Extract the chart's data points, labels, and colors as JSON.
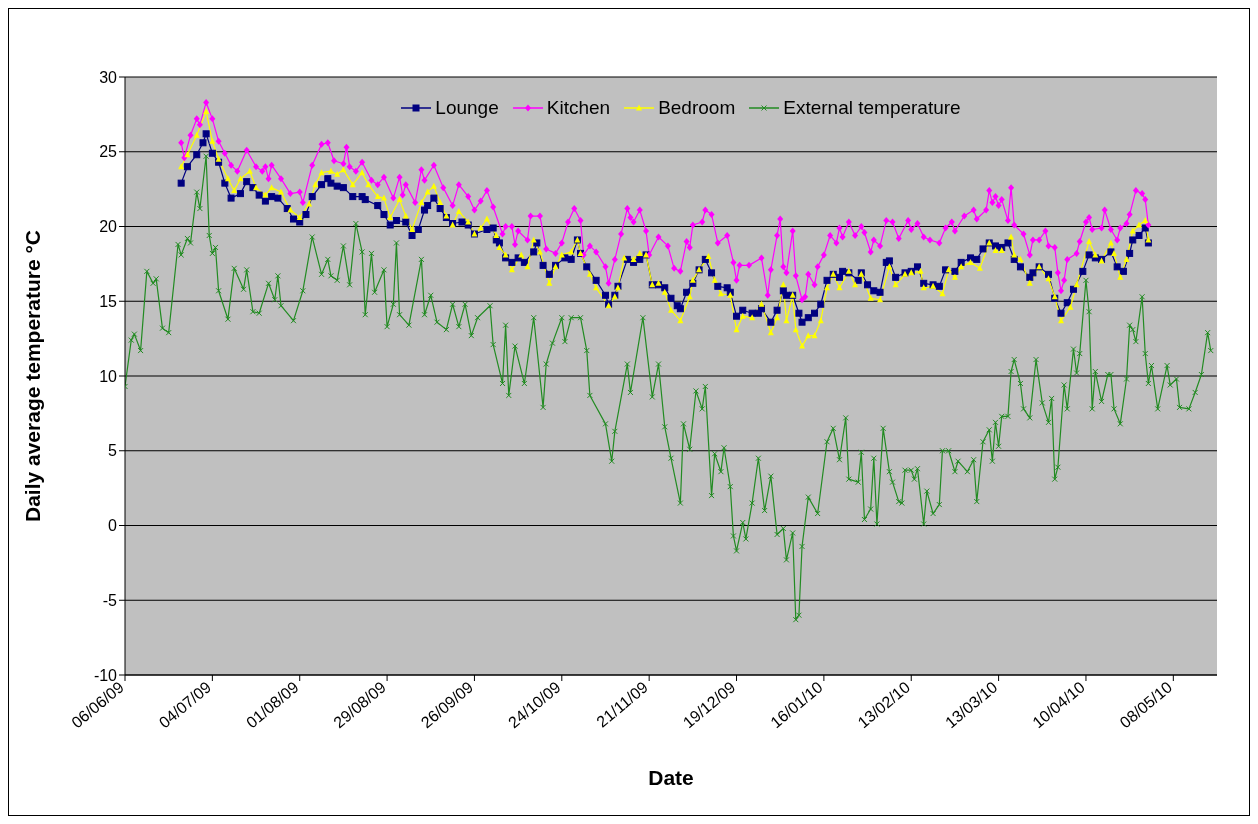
{
  "chart_data": {
    "type": "line",
    "xlabel": "Date",
    "ylabel": "Daily average temperature °C",
    "xlim": [
      "2009-06-06",
      "2010-05-22"
    ],
    "xticks": [
      {
        "value": "2009-06-06",
        "label": "06/06/09"
      },
      {
        "value": "2009-07-04",
        "label": "04/07/09"
      },
      {
        "value": "2009-08-01",
        "label": "01/08/09"
      },
      {
        "value": "2009-08-29",
        "label": "29/08/09"
      },
      {
        "value": "2009-09-26",
        "label": "26/09/09"
      },
      {
        "value": "2009-10-24",
        "label": "24/10/09"
      },
      {
        "value": "2009-11-21",
        "label": "21/11/09"
      },
      {
        "value": "2009-12-19",
        "label": "19/12/09"
      },
      {
        "value": "2010-01-16",
        "label": "16/01/10"
      },
      {
        "value": "2010-02-13",
        "label": "13/02/10"
      },
      {
        "value": "2010-03-13",
        "label": "13/03/10"
      },
      {
        "value": "2010-04-10",
        "label": "10/04/10"
      },
      {
        "value": "2010-05-08",
        "label": "08/05/10"
      }
    ],
    "ylim": [
      -10,
      30
    ],
    "yticks": [
      -10,
      -5,
      0,
      5,
      10,
      15,
      20,
      25,
      30
    ],
    "grid": "y",
    "legend": "top",
    "line_style": "solid",
    "series": [
      {
        "name": "Lounge",
        "color": "#000080",
        "marker": "square",
        "x": [
          "2009-06-24",
          "2009-06-26",
          "2009-06-29",
          "2009-07-01",
          "2009-07-02",
          "2009-07-04",
          "2009-07-06",
          "2009-07-08",
          "2009-07-10",
          "2009-07-13",
          "2009-07-15",
          "2009-07-17",
          "2009-07-19",
          "2009-07-21",
          "2009-07-23",
          "2009-07-25",
          "2009-07-28",
          "2009-07-30",
          "2009-08-01",
          "2009-08-03",
          "2009-08-05",
          "2009-08-08",
          "2009-08-10",
          "2009-08-11",
          "2009-08-13",
          "2009-08-15",
          "2009-08-18",
          "2009-08-21",
          "2009-08-22",
          "2009-08-26",
          "2009-08-28",
          "2009-08-30",
          "2009-09-01",
          "2009-09-04",
          "2009-09-06",
          "2009-09-08",
          "2009-09-10",
          "2009-09-11",
          "2009-09-13",
          "2009-09-15",
          "2009-09-17",
          "2009-09-19",
          "2009-09-22",
          "2009-09-24",
          "2009-09-26",
          "2009-09-30",
          "2009-10-02",
          "2009-10-03",
          "2009-10-04",
          "2009-10-06",
          "2009-10-08",
          "2009-10-10",
          "2009-10-12",
          "2009-10-15",
          "2009-10-16",
          "2009-10-18",
          "2009-10-20",
          "2009-10-22",
          "2009-10-25",
          "2009-10-27",
          "2009-10-29",
          "2009-10-30",
          "2009-11-01",
          "2009-11-04",
          "2009-11-07",
          "2009-11-08",
          "2009-11-10",
          "2009-11-11",
          "2009-11-14",
          "2009-11-16",
          "2009-11-18",
          "2009-11-20",
          "2009-11-22",
          "2009-11-24",
          "2009-11-26",
          "2009-11-28",
          "2009-11-30",
          "2009-12-01",
          "2009-12-03",
          "2009-12-05",
          "2009-12-07",
          "2009-12-09",
          "2009-12-11",
          "2009-12-13",
          "2009-12-16",
          "2009-12-17",
          "2009-12-19",
          "2009-12-21",
          "2009-12-24",
          "2009-12-26",
          "2009-12-27",
          "2009-12-30",
          "2010-01-01",
          "2010-01-03",
          "2010-01-04",
          "2010-01-06",
          "2010-01-08",
          "2010-01-09",
          "2010-01-11",
          "2010-01-13",
          "2010-01-15",
          "2010-01-17",
          "2010-01-19",
          "2010-01-21",
          "2010-01-22",
          "2010-01-24",
          "2010-01-27",
          "2010-01-28",
          "2010-01-30",
          "2010-02-01",
          "2010-02-03",
          "2010-02-05",
          "2010-02-06",
          "2010-02-08",
          "2010-02-11",
          "2010-02-13",
          "2010-02-15",
          "2010-02-17",
          "2010-02-20",
          "2010-02-22",
          "2010-02-24",
          "2010-02-27",
          "2010-03-01",
          "2010-03-04",
          "2010-03-06",
          "2010-03-08",
          "2010-03-10",
          "2010-03-12",
          "2010-03-14",
          "2010-03-16",
          "2010-03-18",
          "2010-03-20",
          "2010-03-23",
          "2010-03-24",
          "2010-03-26",
          "2010-03-29",
          "2010-03-31",
          "2010-04-02",
          "2010-04-04",
          "2010-04-06",
          "2010-04-09",
          "2010-04-11",
          "2010-04-13",
          "2010-04-15",
          "2010-04-18",
          "2010-04-20",
          "2010-04-22",
          "2010-04-24",
          "2010-04-25",
          "2010-04-27",
          "2010-04-29",
          "2010-04-30"
        ],
        "values": [
          22.9,
          24.0,
          24.8,
          25.6,
          26.2,
          24.9,
          24.3,
          22.9,
          21.9,
          22.2,
          23.0,
          22.6,
          22.1,
          21.7,
          22.0,
          21.9,
          21.2,
          20.5,
          20.3,
          20.8,
          22.0,
          22.8,
          23.2,
          22.9,
          22.7,
          22.6,
          22.0,
          22.0,
          21.8,
          21.4,
          20.8,
          20.1,
          20.4,
          20.3,
          19.4,
          19.8,
          21.1,
          21.4,
          21.9,
          21.2,
          20.6,
          20.2,
          20.3,
          20.1,
          19.5,
          19.8,
          19.9,
          19.1,
          18.9,
          17.9,
          17.6,
          17.9,
          17.6,
          18.3,
          18.9,
          17.4,
          16.8,
          17.4,
          17.9,
          17.8,
          19.1,
          18.2,
          17.3,
          16.4,
          15.4,
          14.8,
          15.4,
          16.0,
          17.8,
          17.6,
          17.8,
          18.1,
          16.1,
          16.1,
          15.9,
          15.2,
          14.7,
          14.5,
          15.6,
          16.2,
          17.1,
          17.8,
          16.9,
          16.0,
          15.9,
          15.6,
          14.0,
          14.4,
          14.2,
          14.2,
          14.5,
          13.6,
          14.4,
          15.7,
          15.4,
          15.4,
          14.2,
          13.6,
          13.9,
          14.2,
          14.8,
          16.4,
          16.8,
          16.6,
          17.0,
          16.9,
          16.4,
          16.9,
          16.1,
          15.7,
          15.6,
          17.6,
          17.7,
          16.6,
          16.9,
          17.0,
          17.3,
          16.2,
          16.1,
          16.0,
          17.1,
          17.0,
          17.6,
          17.9,
          17.8,
          18.5,
          18.9,
          18.7,
          18.6,
          18.9,
          17.8,
          17.3,
          16.6,
          16.9,
          17.3,
          16.8,
          15.2,
          14.2,
          14.9,
          15.8,
          17.0,
          18.1,
          17.9,
          17.8,
          18.3,
          17.3,
          17.0,
          18.2,
          19.1,
          19.4,
          19.9,
          18.9
        ]
      },
      {
        "name": "Kitchen",
        "color": "#ff00ff",
        "marker": "diamond",
        "x": [
          "2009-06-24",
          "2009-06-25",
          "2009-06-27",
          "2009-06-29",
          "2009-06-30",
          "2009-07-02",
          "2009-07-04",
          "2009-07-06",
          "2009-07-08",
          "2009-07-10",
          "2009-07-12",
          "2009-07-15",
          "2009-07-18",
          "2009-07-20",
          "2009-07-21",
          "2009-07-22",
          "2009-07-23",
          "2009-07-26",
          "2009-07-29",
          "2009-08-01",
          "2009-08-02",
          "2009-08-05",
          "2009-08-08",
          "2009-08-10",
          "2009-08-12",
          "2009-08-15",
          "2009-08-16",
          "2009-08-17",
          "2009-08-19",
          "2009-08-21",
          "2009-08-24",
          "2009-08-26",
          "2009-08-28",
          "2009-08-31",
          "2009-09-02",
          "2009-09-03",
          "2009-09-04",
          "2009-09-07",
          "2009-09-09",
          "2009-09-10",
          "2009-09-13",
          "2009-09-16",
          "2009-09-19",
          "2009-09-21",
          "2009-09-24",
          "2009-09-26",
          "2009-09-28",
          "2009-09-30",
          "2009-10-02",
          "2009-10-05",
          "2009-10-06",
          "2009-10-08",
          "2009-10-09",
          "2009-10-10",
          "2009-10-13",
          "2009-10-14",
          "2009-10-17",
          "2009-10-19",
          "2009-10-22",
          "2009-10-24",
          "2009-10-26",
          "2009-10-28",
          "2009-10-30",
          "2009-10-31",
          "2009-11-02",
          "2009-11-04",
          "2009-11-07",
          "2009-11-08",
          "2009-11-10",
          "2009-11-12",
          "2009-11-14",
          "2009-11-15",
          "2009-11-16",
          "2009-11-18",
          "2009-11-20",
          "2009-11-21",
          "2009-11-24",
          "2009-11-27",
          "2009-11-29",
          "2009-12-01",
          "2009-12-03",
          "2009-12-04",
          "2009-12-05",
          "2009-12-08",
          "2009-12-09",
          "2009-12-11",
          "2009-12-13",
          "2009-12-16",
          "2009-12-18",
          "2009-12-19",
          "2009-12-20",
          "2009-12-23",
          "2009-12-27",
          "2009-12-29",
          "2009-12-30",
          "2010-01-01",
          "2010-01-02",
          "2010-01-03",
          "2010-01-04",
          "2010-01-06",
          "2010-01-07",
          "2010-01-09",
          "2010-01-10",
          "2010-01-11",
          "2010-01-13",
          "2010-01-14",
          "2010-01-16",
          "2010-01-18",
          "2010-01-20",
          "2010-01-21",
          "2010-01-22",
          "2010-01-24",
          "2010-01-26",
          "2010-01-28",
          "2010-01-29",
          "2010-01-31",
          "2010-02-01",
          "2010-02-03",
          "2010-02-05",
          "2010-02-07",
          "2010-02-09",
          "2010-02-12",
          "2010-02-13",
          "2010-02-15",
          "2010-02-17",
          "2010-02-19",
          "2010-02-22",
          "2010-02-24",
          "2010-02-26",
          "2010-02-27",
          "2010-03-02",
          "2010-03-05",
          "2010-03-06",
          "2010-03-09",
          "2010-03-10",
          "2010-03-11",
          "2010-03-12",
          "2010-03-13",
          "2010-03-14",
          "2010-03-16",
          "2010-03-17",
          "2010-03-18",
          "2010-03-21",
          "2010-03-23",
          "2010-03-24",
          "2010-03-26",
          "2010-03-28",
          "2010-03-29",
          "2010-03-31",
          "2010-04-01",
          "2010-04-02",
          "2010-04-03",
          "2010-04-04",
          "2010-04-07",
          "2010-04-08",
          "2010-04-10",
          "2010-04-11",
          "2010-04-12",
          "2010-04-15",
          "2010-04-16",
          "2010-04-18",
          "2010-04-20",
          "2010-04-21",
          "2010-04-23",
          "2010-04-24",
          "2010-04-26",
          "2010-04-28",
          "2010-04-29",
          "2010-04-30"
        ],
        "values": [
          25.6,
          24.6,
          26.1,
          27.2,
          26.8,
          28.3,
          27.2,
          25.7,
          24.9,
          24.1,
          23.7,
          25.1,
          24.0,
          23.7,
          24.0,
          23.2,
          24.1,
          23.2,
          22.2,
          22.3,
          21.6,
          24.1,
          25.5,
          25.6,
          24.4,
          24.2,
          25.3,
          24.0,
          23.7,
          24.3,
          23.1,
          22.8,
          23.3,
          21.9,
          23.3,
          22.1,
          22.8,
          21.6,
          23.8,
          23.1,
          24.1,
          22.6,
          21.4,
          22.8,
          22.0,
          21.1,
          21.7,
          22.4,
          21.3,
          19.5,
          20.0,
          20.0,
          18.8,
          19.7,
          19.1,
          20.7,
          20.7,
          18.5,
          18.2,
          18.9,
          20.3,
          21.2,
          20.4,
          18.1,
          18.7,
          18.3,
          17.3,
          16.2,
          17.8,
          19.5,
          21.2,
          20.6,
          20.3,
          21.1,
          19.7,
          18.1,
          19.3,
          18.7,
          17.2,
          17.0,
          19.0,
          18.6,
          20.1,
          20.3,
          21.1,
          20.8,
          18.9,
          19.4,
          17.6,
          16.4,
          17.4,
          17.4,
          17.9,
          15.4,
          17.1,
          19.4,
          20.5,
          17.3,
          16.9,
          19.7,
          16.7,
          15.1,
          15.3,
          16.8,
          16.1,
          17.3,
          18.1,
          19.4,
          18.9,
          19.9,
          19.3,
          20.3,
          19.4,
          20.0,
          19.6,
          18.3,
          19.1,
          18.7,
          20.4,
          20.3,
          19.2,
          20.4,
          19.8,
          20.2,
          19.3,
          19.1,
          18.9,
          19.9,
          20.3,
          19.7,
          20.7,
          21.1,
          20.5,
          21.1,
          22.4,
          21.6,
          22.0,
          21.4,
          21.8,
          20.4,
          22.6,
          20.1,
          19.5,
          18.1,
          19.1,
          19.1,
          19.7,
          18.7,
          18.6,
          16.9,
          15.7,
          16.4,
          17.8,
          18.2,
          19.0,
          20.3,
          20.6,
          19.8,
          19.9,
          21.1,
          19.8,
          19.1,
          19.9,
          20.2,
          20.8,
          22.4,
          22.2,
          21.8,
          20.1
        ]
      },
      {
        "name": "Bedroom",
        "color": "#ffff00",
        "marker": "triangle",
        "x": [
          "2009-06-24",
          "2009-06-26",
          "2009-06-29",
          "2009-07-02",
          "2009-07-04",
          "2009-07-06",
          "2009-07-09",
          "2009-07-11",
          "2009-07-13",
          "2009-07-16",
          "2009-07-18",
          "2009-07-21",
          "2009-07-23",
          "2009-07-26",
          "2009-07-29",
          "2009-08-01",
          "2009-08-04",
          "2009-08-06",
          "2009-08-08",
          "2009-08-11",
          "2009-08-13",
          "2009-08-15",
          "2009-08-18",
          "2009-08-21",
          "2009-08-23",
          "2009-08-26",
          "2009-08-28",
          "2009-08-30",
          "2009-09-02",
          "2009-09-04",
          "2009-09-06",
          "2009-09-09",
          "2009-09-11",
          "2009-09-13",
          "2009-09-15",
          "2009-09-17",
          "2009-09-19",
          "2009-09-21",
          "2009-09-24",
          "2009-09-26",
          "2009-09-28",
          "2009-09-30",
          "2009-10-03",
          "2009-10-04",
          "2009-10-06",
          "2009-10-08",
          "2009-10-11",
          "2009-10-13",
          "2009-10-15",
          "2009-10-17",
          "2009-10-20",
          "2009-10-22",
          "2009-10-24",
          "2009-10-27",
          "2009-10-29",
          "2009-10-30",
          "2009-11-02",
          "2009-11-04",
          "2009-11-08",
          "2009-11-10",
          "2009-11-11",
          "2009-11-13",
          "2009-11-16",
          "2009-11-18",
          "2009-11-20",
          "2009-11-22",
          "2009-11-24",
          "2009-11-26",
          "2009-11-28",
          "2009-12-01",
          "2009-12-04",
          "2009-12-05",
          "2009-12-07",
          "2009-12-10",
          "2009-12-12",
          "2009-12-14",
          "2009-12-17",
          "2009-12-19",
          "2009-12-21",
          "2009-12-24",
          "2009-12-27",
          "2009-12-30",
          "2010-01-01",
          "2010-01-03",
          "2010-01-04",
          "2010-01-06",
          "2010-01-07",
          "2010-01-09",
          "2010-01-11",
          "2010-01-13",
          "2010-01-15",
          "2010-01-17",
          "2010-01-19",
          "2010-01-21",
          "2010-01-24",
          "2010-01-26",
          "2010-01-28",
          "2010-01-31",
          "2010-02-03",
          "2010-02-06",
          "2010-02-08",
          "2010-02-11",
          "2010-02-13",
          "2010-02-16",
          "2010-02-17",
          "2010-02-20",
          "2010-02-23",
          "2010-02-25",
          "2010-02-27",
          "2010-03-01",
          "2010-03-04",
          "2010-03-07",
          "2010-03-10",
          "2010-03-12",
          "2010-03-14",
          "2010-03-17",
          "2010-03-18",
          "2010-03-20",
          "2010-03-23",
          "2010-03-26",
          "2010-03-29",
          "2010-03-31",
          "2010-04-02",
          "2010-04-05",
          "2010-04-07",
          "2010-04-11",
          "2010-04-13",
          "2010-04-15",
          "2010-04-18",
          "2010-04-19",
          "2010-04-21",
          "2010-04-23",
          "2010-04-25",
          "2010-04-27",
          "2010-04-29",
          "2010-04-30"
        ],
        "values": [
          24.0,
          24.8,
          26.1,
          27.7,
          25.7,
          24.5,
          23.2,
          22.4,
          23.2,
          23.7,
          22.6,
          22.1,
          22.6,
          22.3,
          21.1,
          20.6,
          21.5,
          22.8,
          23.6,
          23.7,
          23.5,
          23.8,
          22.8,
          23.6,
          22.8,
          22.0,
          21.9,
          20.6,
          21.8,
          20.7,
          19.8,
          21.6,
          22.3,
          22.7,
          21.6,
          20.7,
          20.1,
          21.0,
          20.3,
          19.5,
          19.9,
          20.5,
          19.4,
          18.6,
          18.1,
          17.1,
          18.1,
          17.3,
          19.1,
          18.3,
          16.2,
          17.3,
          18.1,
          18.3,
          19.1,
          18.2,
          16.8,
          15.9,
          14.7,
          15.3,
          15.9,
          17.9,
          17.8,
          18.2,
          18.1,
          16.1,
          16.2,
          15.6,
          14.4,
          13.7,
          15.3,
          16.4,
          17.1,
          18.0,
          16.4,
          15.5,
          15.4,
          13.1,
          14.0,
          13.9,
          14.8,
          12.9,
          13.9,
          16.1,
          13.7,
          15.4,
          13.1,
          12.0,
          12.7,
          12.7,
          13.7,
          15.9,
          16.8,
          15.9,
          17.0,
          16.1,
          16.8,
          15.2,
          15.1,
          17.3,
          16.1,
          16.8,
          16.9,
          17.0,
          15.9,
          16.0,
          15.5,
          17.1,
          16.6,
          17.3,
          17.6,
          17.2,
          18.9,
          18.4,
          18.4,
          19.3,
          18.1,
          17.8,
          16.2,
          17.3,
          16.5,
          15.3,
          13.7,
          14.6,
          16.1,
          19.0,
          18.1,
          17.7,
          18.9,
          18.2,
          16.6,
          17.8,
          19.7,
          20.1,
          20.4,
          19.1
        ]
      },
      {
        "name": "External temperature",
        "color": "#228b22",
        "marker": "cross",
        "x": [
          "2009-06-06",
          "2009-06-08",
          "2009-06-09",
          "2009-06-11",
          "2009-06-13",
          "2009-06-15",
          "2009-06-16",
          "2009-06-18",
          "2009-06-20",
          "2009-06-23",
          "2009-06-24",
          "2009-06-26",
          "2009-06-27",
          "2009-06-29",
          "2009-06-30",
          "2009-07-02",
          "2009-07-03",
          "2009-07-04",
          "2009-07-05",
          "2009-07-06",
          "2009-07-09",
          "2009-07-11",
          "2009-07-14",
          "2009-07-15",
          "2009-07-17",
          "2009-07-19",
          "2009-07-22",
          "2009-07-24",
          "2009-07-25",
          "2009-07-26",
          "2009-07-30",
          "2009-08-02",
          "2009-08-05",
          "2009-08-08",
          "2009-08-10",
          "2009-08-11",
          "2009-08-13",
          "2009-08-15",
          "2009-08-17",
          "2009-08-19",
          "2009-08-21",
          "2009-08-22",
          "2009-08-24",
          "2009-08-25",
          "2009-08-28",
          "2009-08-29",
          "2009-08-31",
          "2009-09-01",
          "2009-09-02",
          "2009-09-05",
          "2009-09-09",
          "2009-09-10",
          "2009-09-12",
          "2009-09-14",
          "2009-09-17",
          "2009-09-19",
          "2009-09-21",
          "2009-09-23",
          "2009-09-25",
          "2009-09-27",
          "2009-10-01",
          "2009-10-02",
          "2009-10-05",
          "2009-10-06",
          "2009-10-07",
          "2009-10-09",
          "2009-10-12",
          "2009-10-15",
          "2009-10-18",
          "2009-10-19",
          "2009-10-21",
          "2009-10-24",
          "2009-10-25",
          "2009-10-27",
          "2009-10-30",
          "2009-11-01",
          "2009-11-02",
          "2009-11-07",
          "2009-11-09",
          "2009-11-10",
          "2009-11-14",
          "2009-11-15",
          "2009-11-19",
          "2009-11-22",
          "2009-11-24",
          "2009-11-26",
          "2009-11-28",
          "2009-12-01",
          "2009-12-02",
          "2009-12-04",
          "2009-12-06",
          "2009-12-08",
          "2009-12-09",
          "2009-12-11",
          "2009-12-12",
          "2009-12-14",
          "2009-12-15",
          "2009-12-17",
          "2009-12-18",
          "2009-12-19",
          "2009-12-21",
          "2009-12-22",
          "2009-12-24",
          "2009-12-26",
          "2009-12-28",
          "2009-12-30",
          "2010-01-01",
          "2010-01-03",
          "2010-01-04",
          "2010-01-06",
          "2010-01-07",
          "2010-01-08",
          "2010-01-09",
          "2010-01-11",
          "2010-01-14",
          "2010-01-17",
          "2010-01-19",
          "2010-01-21",
          "2010-01-23",
          "2010-01-24",
          "2010-01-27",
          "2010-01-28",
          "2010-01-29",
          "2010-01-31",
          "2010-02-01",
          "2010-02-02",
          "2010-02-04",
          "2010-02-06",
          "2010-02-07",
          "2010-02-09",
          "2010-02-10",
          "2010-02-11",
          "2010-02-13",
          "2010-02-14",
          "2010-02-15",
          "2010-02-17",
          "2010-02-18",
          "2010-02-20",
          "2010-02-22",
          "2010-02-23",
          "2010-02-25",
          "2010-02-27",
          "2010-02-28",
          "2010-03-03",
          "2010-03-05",
          "2010-03-06",
          "2010-03-08",
          "2010-03-10",
          "2010-03-11",
          "2010-03-12",
          "2010-03-13",
          "2010-03-14",
          "2010-03-16",
          "2010-03-17",
          "2010-03-18",
          "2010-03-20",
          "2010-03-21",
          "2010-03-23",
          "2010-03-25",
          "2010-03-27",
          "2010-03-29",
          "2010-03-30",
          "2010-03-31",
          "2010-04-01",
          "2010-04-03",
          "2010-04-04",
          "2010-04-06",
          "2010-04-07",
          "2010-04-08",
          "2010-04-10",
          "2010-04-11",
          "2010-04-12",
          "2010-04-13",
          "2010-04-15",
          "2010-04-17",
          "2010-04-18",
          "2010-04-19",
          "2010-04-21",
          "2010-04-23",
          "2010-04-24",
          "2010-04-25",
          "2010-04-26",
          "2010-04-28",
          "2010-04-29",
          "2010-04-30",
          "2010-05-01",
          "2010-05-03",
          "2010-05-06",
          "2010-05-07",
          "2010-05-09",
          "2010-05-10",
          "2010-05-13",
          "2010-05-15",
          "2010-05-17",
          "2010-05-19",
          "2010-05-20"
        ],
        "values": [
          9.3,
          12.4,
          12.8,
          11.7,
          17.0,
          16.2,
          16.5,
          13.2,
          12.9,
          18.8,
          18.1,
          19.2,
          18.9,
          22.3,
          21.2,
          24.7,
          19.4,
          18.2,
          18.6,
          15.7,
          13.8,
          17.2,
          15.8,
          17.1,
          14.3,
          14.2,
          16.2,
          15.1,
          16.7,
          14.7,
          13.7,
          15.7,
          19.3,
          16.8,
          17.8,
          16.7,
          16.4,
          18.7,
          16.1,
          20.2,
          18.3,
          14.1,
          18.2,
          15.6,
          17.1,
          13.3,
          14.8,
          18.9,
          14.1,
          13.4,
          17.8,
          14.1,
          15.4,
          13.6,
          13.1,
          14.8,
          13.3,
          14.8,
          12.7,
          13.9,
          14.7,
          12.1,
          9.5,
          13.4,
          8.7,
          12.0,
          9.5,
          13.9,
          7.9,
          10.8,
          12.2,
          13.9,
          12.3,
          13.9,
          13.9,
          11.7,
          8.7,
          6.8,
          4.3,
          6.3,
          10.8,
          8.9,
          13.9,
          8.6,
          10.8,
          6.6,
          4.5,
          1.5,
          6.8,
          5.1,
          9.0,
          7.8,
          9.3,
          2.0,
          4.8,
          3.6,
          5.2,
          2.6,
          -0.7,
          -1.7,
          0.2,
          -0.9,
          1.5,
          4.5,
          1.0,
          3.3,
          -0.6,
          -0.2,
          -2.3,
          -0.5,
          -6.3,
          -6.0,
          -1.4,
          1.9,
          0.8,
          5.6,
          6.5,
          4.4,
          7.2,
          3.1,
          2.9,
          4.9,
          0.4,
          1.1,
          4.5,
          0.1,
          6.5,
          3.6,
          2.9,
          1.6,
          1.5,
          3.7,
          3.7,
          3.1,
          3.8,
          0.1,
          2.3,
          0.8,
          1.4,
          5.0,
          5.0,
          3.6,
          4.3,
          3.6,
          4.4,
          1.6,
          5.6,
          6.4,
          4.3,
          6.9,
          5.3,
          7.3,
          7.3,
          10.3,
          11.1,
          9.5,
          7.8,
          7.2,
          11.1,
          8.2,
          6.9,
          8.5,
          3.1,
          3.9,
          9.4,
          7.8,
          11.8,
          10.2,
          11.5,
          16.4,
          14.3,
          7.8,
          10.3,
          8.3,
          10.1,
          10.1,
          7.8,
          6.8,
          9.8,
          13.4,
          13.1,
          12.3,
          15.3,
          11.5,
          9.5,
          10.7,
          7.8,
          10.7,
          9.4,
          9.8,
          7.9,
          7.8,
          8.9,
          10.1,
          12.9,
          11.7
        ]
      }
    ]
  }
}
